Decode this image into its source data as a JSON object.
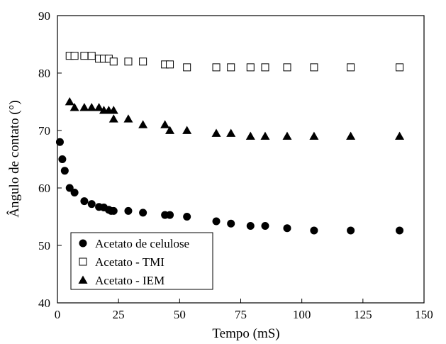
{
  "chart_data": {
    "type": "scatter",
    "title": "",
    "xlabel": "Tempo (mS)",
    "ylabel": "Ângulo de contato (°)",
    "xlim": [
      0,
      150
    ],
    "ylim": [
      40,
      90
    ],
    "xticks": [
      0,
      25,
      50,
      75,
      100,
      125,
      150
    ],
    "yticks": [
      40,
      50,
      60,
      70,
      80,
      90
    ],
    "grid": false,
    "legend_position": "bottom-left",
    "series": [
      {
        "name": "Acetato de celulose",
        "marker": "circle",
        "color": "#000000",
        "x": [
          1,
          2,
          3,
          5,
          7,
          11,
          14,
          17,
          19,
          21,
          22,
          23,
          29,
          35,
          44,
          46,
          53,
          65,
          71,
          79,
          85,
          94,
          105,
          120,
          140
        ],
        "y": [
          68,
          65,
          63,
          60,
          59.2,
          57.7,
          57.2,
          56.7,
          56.6,
          56.2,
          56,
          56,
          56,
          55.7,
          55.3,
          55.3,
          55,
          54.2,
          53.8,
          53.4,
          53.4,
          53,
          52.6,
          52.6,
          52.6
        ]
      },
      {
        "name": "Acetato - TMI",
        "marker": "square-open",
        "color": "#000000",
        "x": [
          5,
          7,
          11,
          14,
          17,
          19,
          21,
          23,
          29,
          35,
          44,
          46,
          53,
          65,
          71,
          79,
          85,
          94,
          105,
          120,
          140
        ],
        "y": [
          83,
          83,
          83,
          83,
          82.5,
          82.5,
          82.5,
          82,
          82,
          82,
          81.5,
          81.5,
          81,
          81,
          81,
          81,
          81,
          81,
          81,
          81,
          81
        ]
      },
      {
        "name": "Acetato - IEM",
        "marker": "triangle",
        "color": "#000000",
        "x": [
          5,
          7,
          11,
          14,
          17,
          19,
          21,
          23,
          23,
          29,
          35,
          44,
          46,
          53,
          65,
          71,
          79,
          85,
          94,
          105,
          120,
          140
        ],
        "y": [
          75,
          74,
          74,
          74,
          74,
          73.5,
          73.5,
          73.5,
          72,
          72,
          71,
          71,
          70,
          70,
          69.5,
          69.5,
          69,
          69,
          69,
          69,
          69,
          69
        ]
      }
    ]
  }
}
